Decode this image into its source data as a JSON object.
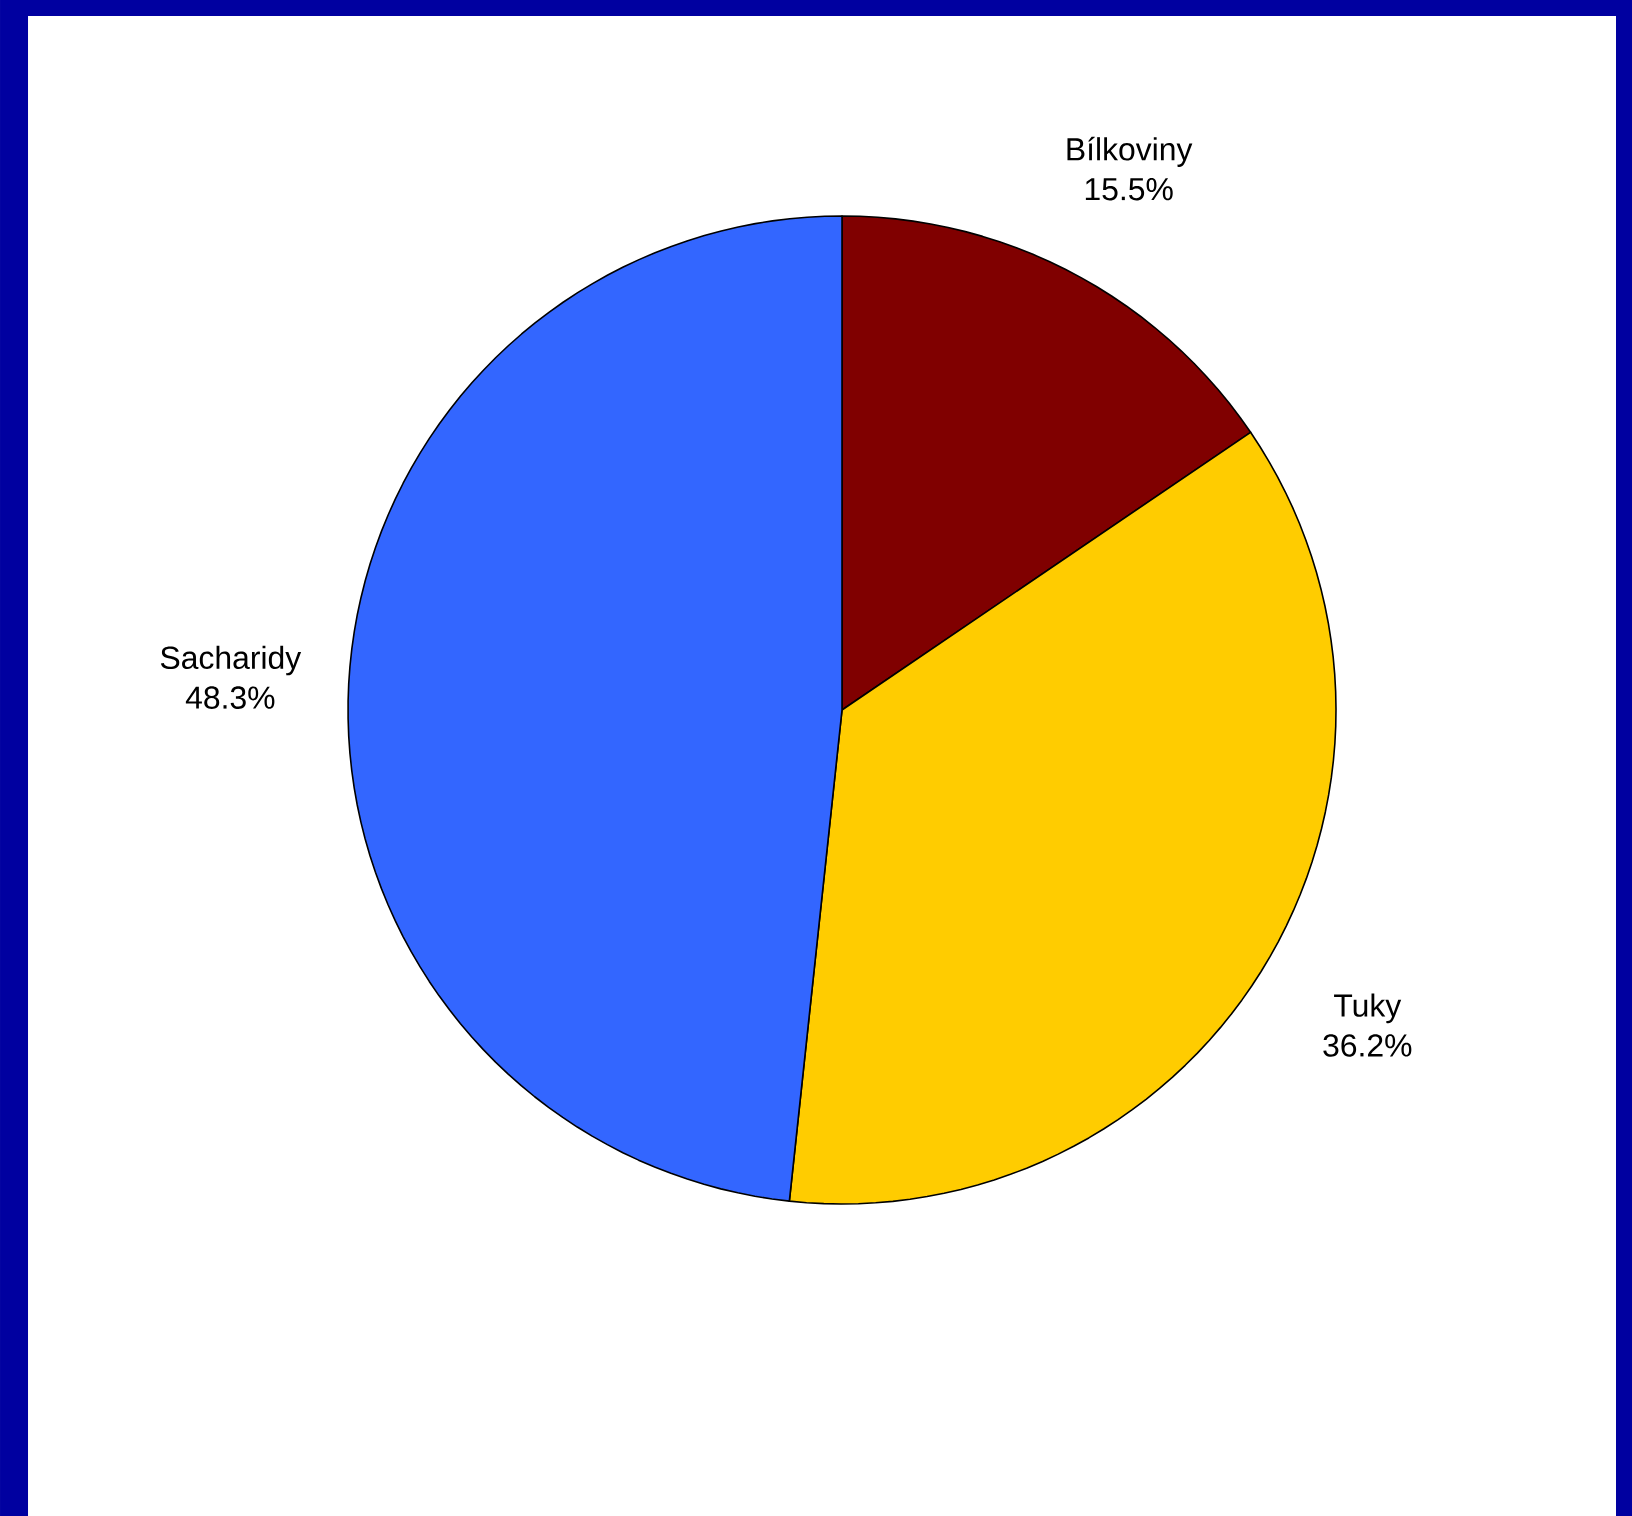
{
  "chart_data": {
    "type": "pie",
    "categories": [
      "Bílkoviny",
      "Tuky",
      "Sacharidy"
    ],
    "values": [
      15.5,
      36.2,
      48.3
    ],
    "colors": [
      "#800000",
      "#ffcc00",
      "#3366ff"
    ],
    "value_labels": [
      "15.5%",
      "36.2%",
      "48.3%"
    ]
  }
}
